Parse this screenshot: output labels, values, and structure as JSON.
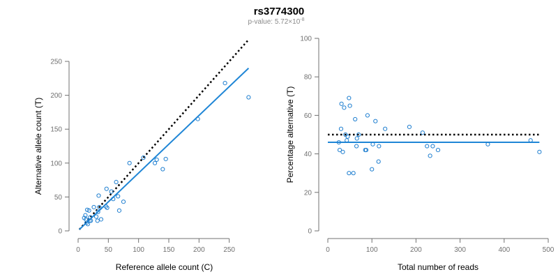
{
  "title": "rs3774300",
  "subtitle": "p-value: 5.72×10",
  "subtitle_exp": "-8",
  "colors": {
    "points": "#1f7fd0",
    "fit": "#1f86d6",
    "expected": "#000000",
    "axis": "#707070"
  },
  "chart_data": [
    {
      "type": "scatter",
      "name": "allele-counts",
      "xlabel": "Reference allele count (C)",
      "ylabel": "Alternative allele count (T)",
      "xlim": [
        0,
        285
      ],
      "ylim": [
        0,
        250
      ],
      "xticks": [
        0,
        50,
        100,
        150,
        200,
        250
      ],
      "yticks": [
        0,
        50,
        100,
        150,
        200,
        250
      ],
      "points": [
        [
          10,
          19
        ],
        [
          12,
          23
        ],
        [
          13,
          17
        ],
        [
          14,
          12
        ],
        [
          15,
          31
        ],
        [
          16,
          10
        ],
        [
          18,
          30
        ],
        [
          19,
          15
        ],
        [
          20,
          20
        ],
        [
          21,
          15
        ],
        [
          26,
          35
        ],
        [
          30,
          21
        ],
        [
          32,
          15
        ],
        [
          33,
          28
        ],
        [
          34,
          52
        ],
        [
          35,
          35
        ],
        [
          38,
          17
        ],
        [
          46,
          36
        ],
        [
          47,
          62
        ],
        [
          48,
          34
        ],
        [
          55,
          58
        ],
        [
          58,
          47
        ],
        [
          63,
          72
        ],
        [
          66,
          51
        ],
        [
          68,
          30
        ],
        [
          75,
          43
        ],
        [
          85,
          100
        ],
        [
          108,
          108
        ],
        [
          127,
          100
        ],
        [
          130,
          105
        ],
        [
          140,
          91
        ],
        [
          145,
          106
        ],
        [
          198,
          165
        ],
        [
          243,
          218
        ],
        [
          282,
          197
        ]
      ],
      "fit_line": [
        [
          2,
          2
        ],
        [
          282,
          240
        ]
      ],
      "expected_line": [
        [
          2,
          2
        ],
        [
          282,
          282
        ]
      ]
    },
    {
      "type": "scatter",
      "name": "percentage-alternative",
      "xlabel": "Total number of reads",
      "ylabel": "Percentage alternative (T)",
      "xlim": [
        0,
        500
      ],
      "ylim": [
        0,
        100
      ],
      "xticks": [
        0,
        100,
        200,
        300,
        400,
        500
      ],
      "yticks": [
        0,
        20,
        40,
        60,
        80,
        100
      ],
      "points": [
        [
          25,
          46
        ],
        [
          27,
          42
        ],
        [
          30,
          53
        ],
        [
          31,
          66
        ],
        [
          34,
          41
        ],
        [
          37,
          64
        ],
        [
          40,
          50
        ],
        [
          43,
          47
        ],
        [
          45,
          49
        ],
        [
          48,
          69
        ],
        [
          48,
          30
        ],
        [
          50,
          65
        ],
        [
          58,
          30
        ],
        [
          62,
          58
        ],
        [
          65,
          44
        ],
        [
          66,
          48
        ],
        [
          70,
          50
        ],
        [
          85,
          42
        ],
        [
          87,
          42
        ],
        [
          90,
          60
        ],
        [
          100,
          32
        ],
        [
          102,
          45
        ],
        [
          108,
          57
        ],
        [
          115,
          36
        ],
        [
          116,
          44
        ],
        [
          130,
          53
        ],
        [
          185,
          54
        ],
        [
          215,
          51
        ],
        [
          225,
          44
        ],
        [
          232,
          39
        ],
        [
          238,
          44
        ],
        [
          250,
          42
        ],
        [
          363,
          45
        ],
        [
          460,
          47
        ],
        [
          480,
          41
        ]
      ],
      "fit_line": [
        [
          0,
          46
        ],
        [
          480,
          46
        ]
      ],
      "expected_line": [
        [
          0,
          50
        ],
        [
          480,
          50
        ]
      ]
    }
  ]
}
